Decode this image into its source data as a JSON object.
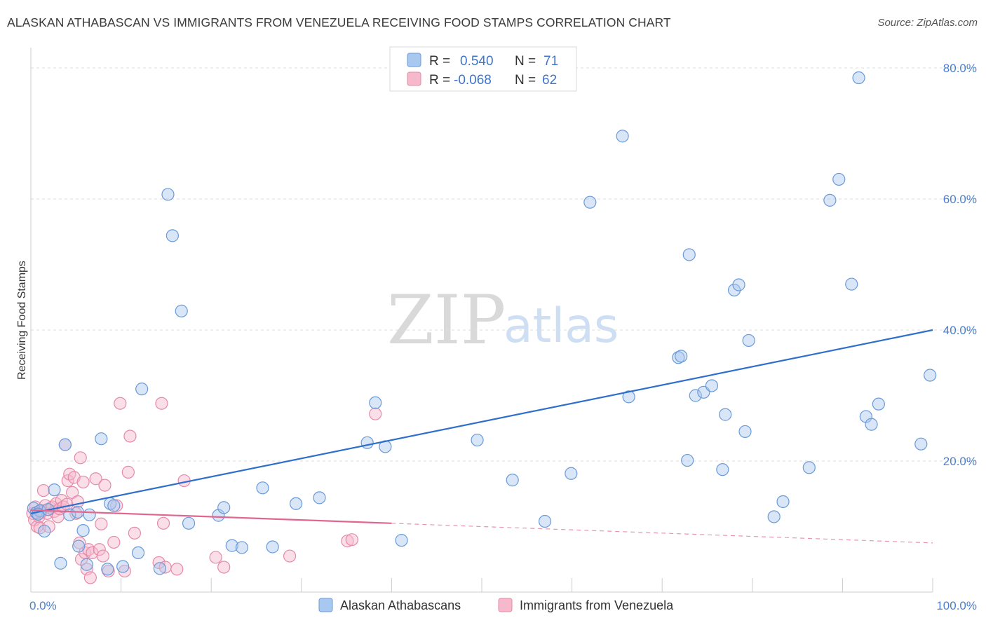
{
  "title": "ALASKAN ATHABASCAN VS IMMIGRANTS FROM VENEZUELA RECEIVING FOOD STAMPS CORRELATION CHART",
  "source": "Source: ZipAtlas.com",
  "watermark": {
    "zip": "ZIP",
    "atlas": "atlas"
  },
  "colors": {
    "blue_fill": "#a9c8f0",
    "blue_stroke": "#6a9ad8",
    "blue_line": "#2f6fcc",
    "pink_fill": "#f6b8cb",
    "pink_stroke": "#e58aa8",
    "pink_line": "#e06690",
    "grid": "#dddddd",
    "axis": "#cccccc",
    "tick_text": "#4a7fd0"
  },
  "legend": {
    "r_label": "R =",
    "n_label": "N =",
    "series1": {
      "r": "0.540",
      "n": "71"
    },
    "series2": {
      "r": "-0.068",
      "n": "62"
    }
  },
  "chart_data": {
    "type": "scatter",
    "title": "ALASKAN ATHABASCAN VS IMMIGRANTS FROM VENEZUELA RECEIVING FOOD STAMPS CORRELATION CHART",
    "xlabel": "",
    "ylabel": "Receiving Food Stamps",
    "xlim": [
      0,
      100
    ],
    "ylim": [
      0,
      80
    ],
    "x_tick_labels": [
      "0.0%",
      "100.0%"
    ],
    "y_ticks": [
      20,
      40,
      60,
      80
    ],
    "y_tick_labels": [
      "20.0%",
      "40.0%",
      "60.0%",
      "80.0%"
    ],
    "grid": true,
    "legend_position": "top-center",
    "series": [
      {
        "name": "Alaskan Athabascans",
        "color": "#a9c8f0",
        "trend": {
          "x": [
            0,
            100
          ],
          "y": [
            12.0,
            40.0
          ],
          "solid_until": 100
        },
        "points": [
          [
            0.3,
            12.8
          ],
          [
            0.6,
            12.1
          ],
          [
            1.0,
            12.4
          ],
          [
            1.5,
            9.3
          ],
          [
            2.6,
            15.6
          ],
          [
            3.3,
            4.4
          ],
          [
            3.8,
            22.5
          ],
          [
            4.3,
            11.8
          ],
          [
            5.2,
            12.2
          ],
          [
            5.3,
            7.0
          ],
          [
            5.8,
            9.4
          ],
          [
            6.2,
            4.2
          ],
          [
            6.5,
            11.8
          ],
          [
            7.8,
            23.4
          ],
          [
            8.5,
            3.5
          ],
          [
            8.8,
            13.5
          ],
          [
            9.2,
            13.2
          ],
          [
            10.2,
            3.9
          ],
          [
            11.9,
            6.0
          ],
          [
            12.3,
            31.0
          ],
          [
            14.3,
            3.6
          ],
          [
            15.2,
            60.7
          ],
          [
            15.7,
            54.4
          ],
          [
            16.7,
            42.9
          ],
          [
            17.5,
            10.5
          ],
          [
            20.8,
            11.7
          ],
          [
            21.4,
            12.9
          ],
          [
            22.3,
            7.1
          ],
          [
            23.4,
            6.8
          ],
          [
            25.7,
            15.9
          ],
          [
            26.8,
            6.9
          ],
          [
            29.4,
            13.5
          ],
          [
            32.0,
            14.4
          ],
          [
            37.3,
            22.8
          ],
          [
            38.2,
            28.9
          ],
          [
            39.3,
            22.2
          ],
          [
            41.1,
            7.9
          ],
          [
            49.5,
            23.2
          ],
          [
            53.4,
            17.1
          ],
          [
            57.0,
            10.8
          ],
          [
            59.9,
            18.1
          ],
          [
            62.0,
            59.5
          ],
          [
            65.6,
            69.6
          ],
          [
            66.3,
            29.8
          ],
          [
            71.8,
            35.8
          ],
          [
            72.1,
            36.0
          ],
          [
            72.8,
            20.1
          ],
          [
            73.0,
            51.5
          ],
          [
            73.7,
            30.0
          ],
          [
            74.6,
            30.5
          ],
          [
            75.5,
            31.5
          ],
          [
            76.7,
            18.7
          ],
          [
            77.0,
            27.1
          ],
          [
            78.0,
            46.1
          ],
          [
            78.5,
            46.9
          ],
          [
            79.2,
            24.5
          ],
          [
            79.6,
            38.4
          ],
          [
            82.4,
            11.5
          ],
          [
            83.4,
            13.8
          ],
          [
            86.3,
            19.0
          ],
          [
            88.6,
            59.8
          ],
          [
            89.6,
            63.0
          ],
          [
            91.0,
            47.0
          ],
          [
            91.8,
            78.5
          ],
          [
            92.6,
            26.8
          ],
          [
            93.2,
            25.6
          ],
          [
            94.0,
            28.7
          ],
          [
            98.7,
            22.6
          ],
          [
            99.7,
            33.1
          ],
          [
            0.8,
            11.9
          ],
          [
            1.9,
            12.6
          ]
        ]
      },
      {
        "name": "Immigrants from Venezuela",
        "color": "#f6b8cb",
        "trend": {
          "x": [
            0,
            100
          ],
          "y": [
            12.5,
            7.5
          ],
          "solid_until": 40
        },
        "points": [
          [
            0.2,
            12.0
          ],
          [
            0.4,
            11.0
          ],
          [
            0.5,
            13.0
          ],
          [
            0.7,
            10.0
          ],
          [
            0.9,
            11.5
          ],
          [
            1.0,
            9.8
          ],
          [
            1.2,
            12.5
          ],
          [
            1.4,
            15.5
          ],
          [
            1.6,
            13.2
          ],
          [
            1.8,
            12.0
          ],
          [
            2.0,
            10.0
          ],
          [
            2.2,
            12.8
          ],
          [
            2.4,
            13.0
          ],
          [
            2.6,
            12.3
          ],
          [
            2.8,
            13.5
          ],
          [
            3.0,
            11.5
          ],
          [
            3.2,
            12.7
          ],
          [
            3.4,
            14.0
          ],
          [
            3.6,
            13.0
          ],
          [
            3.8,
            22.5
          ],
          [
            4.0,
            13.4
          ],
          [
            4.1,
            17.0
          ],
          [
            4.3,
            18.0
          ],
          [
            4.6,
            15.2
          ],
          [
            4.8,
            17.5
          ],
          [
            5.0,
            12.0
          ],
          [
            5.2,
            13.8
          ],
          [
            5.4,
            7.5
          ],
          [
            5.5,
            20.5
          ],
          [
            5.6,
            5.0
          ],
          [
            5.8,
            16.8
          ],
          [
            6.0,
            6.0
          ],
          [
            6.2,
            3.5
          ],
          [
            6.4,
            6.5
          ],
          [
            6.6,
            2.2
          ],
          [
            6.8,
            6.0
          ],
          [
            7.2,
            17.3
          ],
          [
            7.6,
            6.5
          ],
          [
            7.8,
            10.4
          ],
          [
            8.0,
            5.5
          ],
          [
            8.2,
            16.3
          ],
          [
            8.6,
            3.2
          ],
          [
            9.2,
            7.6
          ],
          [
            9.5,
            13.2
          ],
          [
            9.9,
            28.8
          ],
          [
            10.4,
            3.2
          ],
          [
            10.8,
            18.3
          ],
          [
            11.0,
            23.8
          ],
          [
            11.5,
            9.0
          ],
          [
            14.2,
            4.5
          ],
          [
            14.5,
            28.8
          ],
          [
            14.7,
            10.5
          ],
          [
            14.9,
            3.8
          ],
          [
            16.2,
            3.5
          ],
          [
            17.0,
            17.0
          ],
          [
            20.5,
            5.3
          ],
          [
            21.4,
            3.8
          ],
          [
            28.7,
            5.5
          ],
          [
            35.1,
            7.8
          ],
          [
            35.6,
            8.0
          ],
          [
            38.2,
            27.2
          ],
          [
            1.1,
            12.2
          ]
        ]
      }
    ]
  }
}
